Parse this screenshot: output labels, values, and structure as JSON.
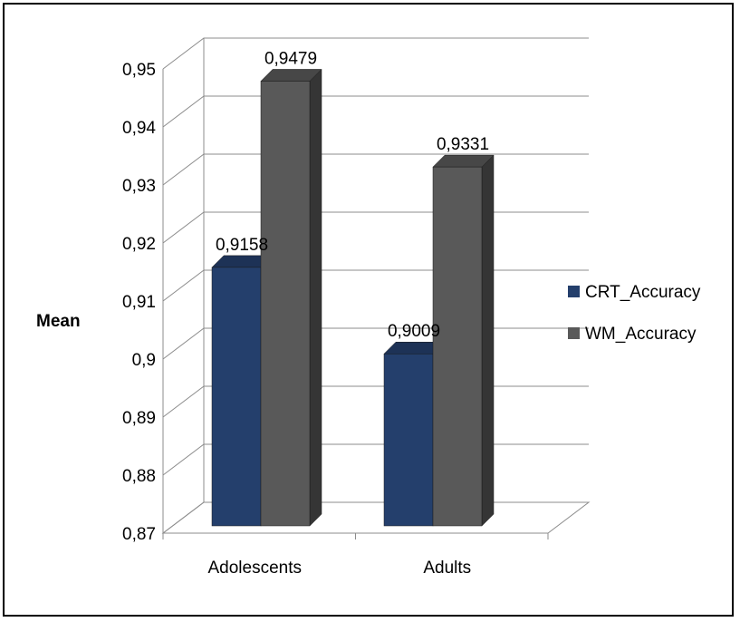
{
  "chart_data": {
    "type": "bar",
    "title": "",
    "xlabel": "",
    "ylabel": "Mean",
    "ylim": [
      0.87,
      0.95
    ],
    "y_ticks": [
      "0,87",
      "0,88",
      "0,89",
      "0,9",
      "0,91",
      "0,92",
      "0,93",
      "0,94",
      "0,95"
    ],
    "categories": [
      "Adolescents",
      "Adults"
    ],
    "series": [
      {
        "name": "CRT_Accuracy",
        "values": [
          0.9158,
          0.9009
        ],
        "labels": [
          "0,9158",
          "0,9009"
        ],
        "color": "#243f6c"
      },
      {
        "name": "WM_Accuracy",
        "values": [
          0.9479,
          0.9331
        ],
        "labels": [
          "0,9479",
          "0,9331"
        ],
        "color": "#595959"
      }
    ],
    "grid": true,
    "legend": "right",
    "style": "3d-clustered-column"
  }
}
